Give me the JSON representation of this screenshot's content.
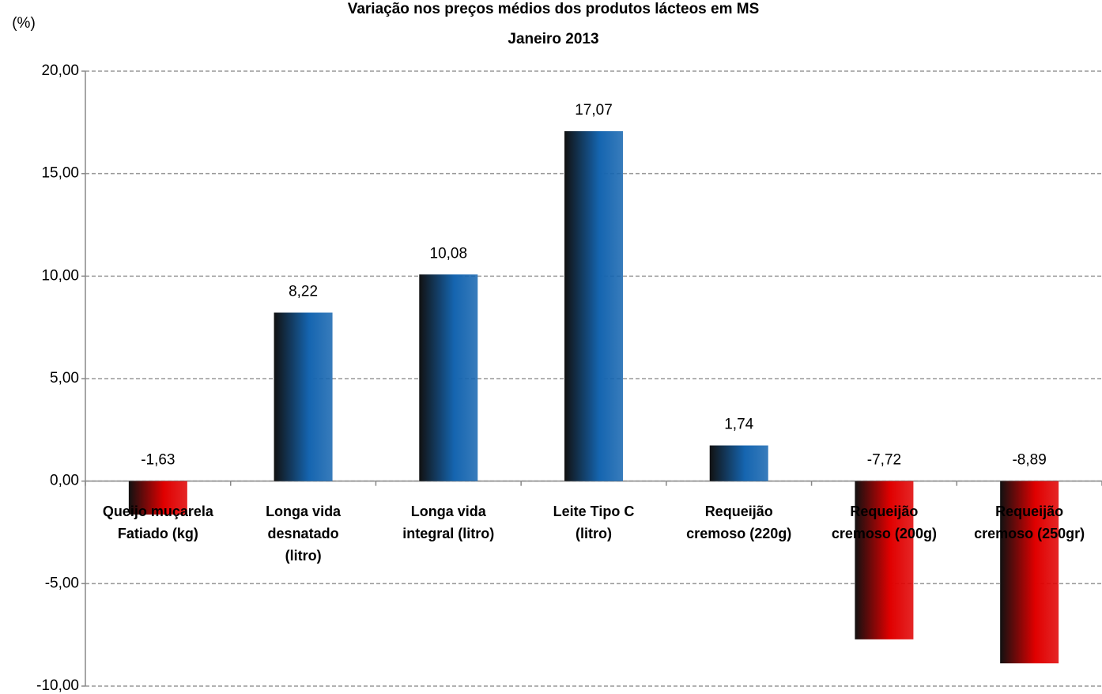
{
  "chart_data": {
    "type": "bar",
    "title": "Variação nos preços médios dos produtos lácteos em MS",
    "subtitle": "Janeiro 2013",
    "y_label": "(%)",
    "categories": [
      [
        "Queijo muçarela",
        "Fatiado (kg)"
      ],
      [
        "Longa vida",
        "desnatado",
        "(litro)"
      ],
      [
        "Longa vida",
        "integral (litro)"
      ],
      [
        "Leite Tipo C",
        "(litro)"
      ],
      [
        "Requeijão",
        "cremoso (220g)"
      ],
      [
        "Requeijão",
        "cremoso (200g)"
      ],
      [
        "Requeijão",
        "cremoso (250gr)"
      ]
    ],
    "values": [
      -1.63,
      8.22,
      10.08,
      17.07,
      1.74,
      -7.72,
      -8.89
    ],
    "value_labels": [
      "-1,63",
      "8,22",
      "10,08",
      "17,07",
      "1,74",
      "-7,72",
      "-8,89"
    ],
    "colors": [
      "#e00000",
      "#1565b0",
      "#1565b0",
      "#1565b0",
      "#1565b0",
      "#e00000",
      "#e00000"
    ],
    "ylim": [
      -10,
      20
    ],
    "yticks": [
      {
        "value": -10,
        "label": "-10,00"
      },
      {
        "value": -5,
        "label": "-5,00"
      },
      {
        "value": 0,
        "label": "0,00"
      },
      {
        "value": 5,
        "label": "5,00"
      },
      {
        "value": 10,
        "label": "10,00"
      },
      {
        "value": 15,
        "label": "15,00"
      },
      {
        "value": 20,
        "label": "20,00"
      }
    ],
    "grid": true
  }
}
